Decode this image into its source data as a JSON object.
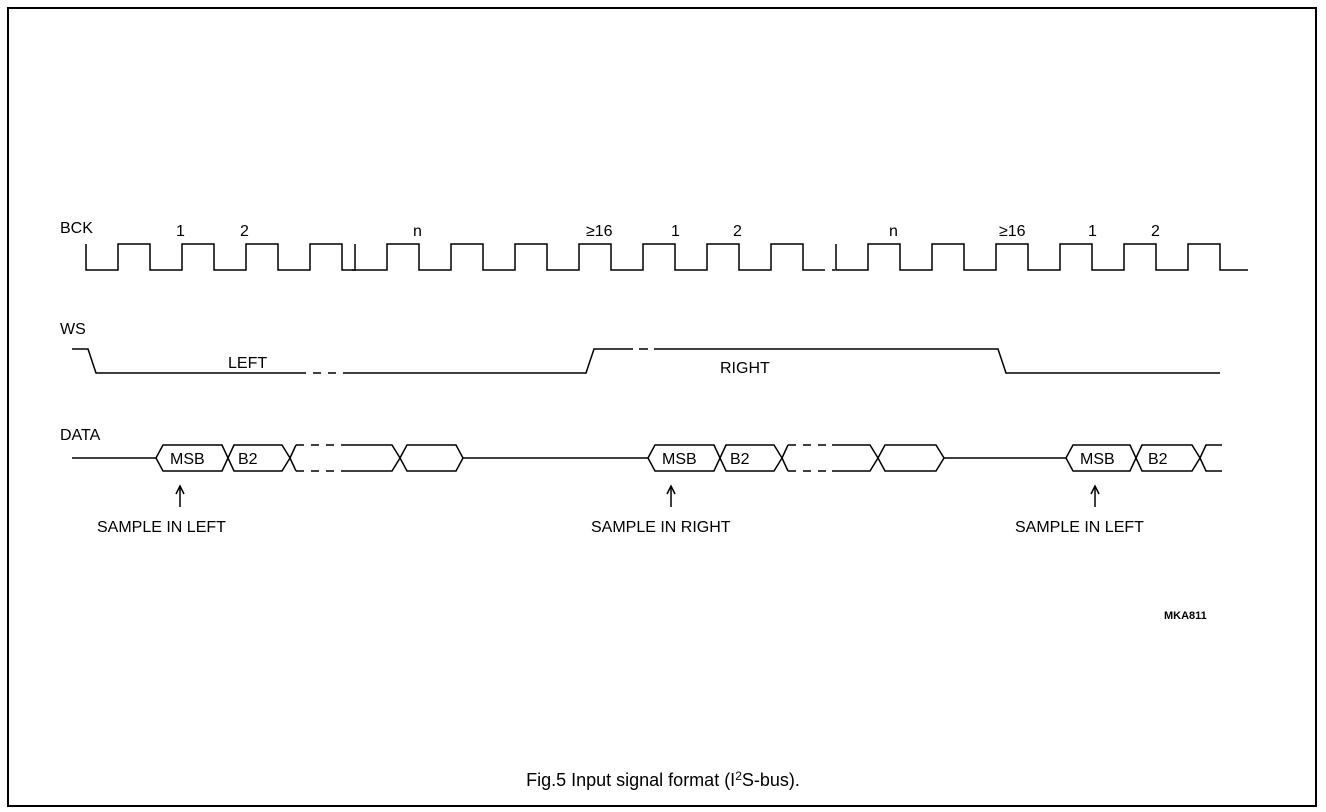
{
  "signals": {
    "bck": "BCK",
    "ws": "WS",
    "data": "DATA"
  },
  "bck_labels": {
    "one": "1",
    "two": "2",
    "n": "n",
    "ge16": "≥16"
  },
  "ws_labels": {
    "left": "LEFT",
    "right": "RIGHT"
  },
  "data_words": {
    "msb": "MSB",
    "b2": "B2"
  },
  "sample_labels": {
    "left": "SAMPLE IN LEFT",
    "right": "SAMPLE IN RIGHT"
  },
  "figure_code": "MKA811",
  "caption": {
    "prefix": "Fig.5  Input signal format (I",
    "sup": "2",
    "suffix": "S-bus)."
  }
}
